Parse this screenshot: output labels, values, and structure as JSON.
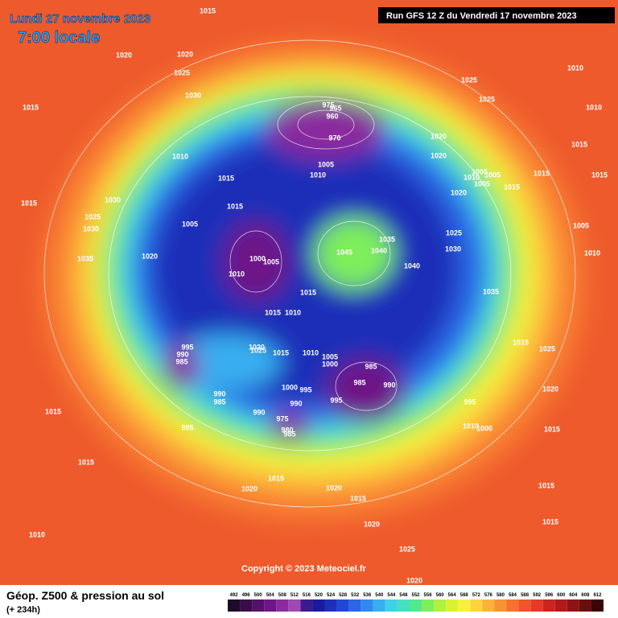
{
  "header": {
    "date": "Lundi 27 novembre 2023",
    "time": "7:00 locale",
    "run": "Run GFS 12 Z du Vendredi 17 novembre 2023"
  },
  "copyright": "Copyright © 2023 Meteociel.fr",
  "footer": {
    "title": "Géop. Z500 & pression au sol",
    "lead": "(+ 234h)"
  },
  "legend": {
    "values": [
      492,
      496,
      500,
      504,
      508,
      512,
      516,
      520,
      524,
      528,
      532,
      536,
      540,
      544,
      548,
      552,
      556,
      560,
      564,
      568,
      572,
      576,
      580,
      584,
      588,
      592,
      596,
      600,
      604,
      608,
      612
    ],
    "colors": [
      "#1e0a2a",
      "#3a0d4a",
      "#55106a",
      "#6e1587",
      "#8a2a9e",
      "#a048b4",
      "#3c1c8c",
      "#1a1a9e",
      "#1d2fb8",
      "#1f49d2",
      "#2a67e6",
      "#2f8af0",
      "#37aef0",
      "#3fd2e6",
      "#44e0bf",
      "#52e88c",
      "#7eee5a",
      "#b0f040",
      "#dcf032",
      "#f8f03c",
      "#fcd43c",
      "#fcb23a",
      "#fa9232",
      "#f6722e",
      "#f0542a",
      "#e43a26",
      "#cc2420",
      "#b01a1a",
      "#8e1414",
      "#6a0e0e",
      "#3a0606"
    ]
  },
  "isobar_labels": [
    "1015",
    "1020",
    "1020",
    "1025",
    "1030",
    "1015",
    "1010",
    "1030",
    "1025",
    "1030",
    "1015",
    "1035",
    "1020",
    "1005",
    "1015",
    "1015",
    "1000",
    "1005",
    "1010",
    "1015",
    "1015",
    "1010",
    "975",
    "965",
    "960",
    "970",
    "1010",
    "1005",
    "1045",
    "1040",
    "1035",
    "1040",
    "1025",
    "1025",
    "1020",
    "1020",
    "1005",
    "1005",
    "1010",
    "1005",
    "1020",
    "1015",
    "1025",
    "1030",
    "1035",
    "1010",
    "1010",
    "1015",
    "1015",
    "1015",
    "1005",
    "1010",
    "1015",
    "1025",
    "1020",
    "995",
    "1010",
    "1000",
    "1015",
    "995",
    "990",
    "985",
    "1020",
    "1025",
    "1015",
    "1010",
    "1005",
    "1000",
    "985",
    "985",
    "990",
    "995",
    "1000",
    "995",
    "990",
    "990",
    "985",
    "990",
    "975",
    "980",
    "985",
    "995",
    "1015",
    "1015",
    "1020",
    "1015",
    "1020",
    "1015",
    "1020",
    "1010",
    "1025",
    "1015",
    "1015",
    "1020"
  ]
}
